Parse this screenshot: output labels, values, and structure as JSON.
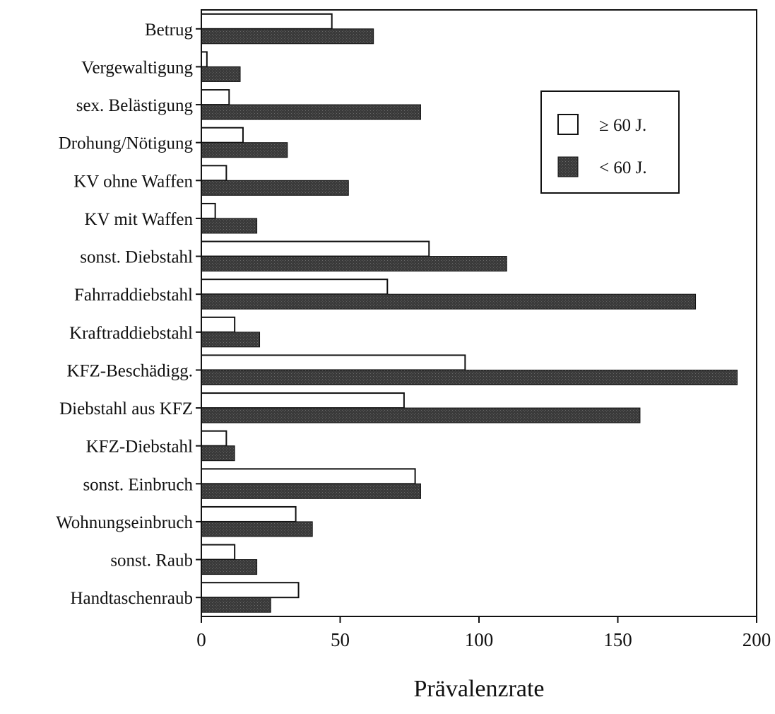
{
  "chart_data": {
    "type": "bar",
    "orientation": "horizontal",
    "categories": [
      "Betrug",
      "Vergewaltigung",
      "sex. Belästigung",
      "Drohung/Nötigung",
      "KV ohne Waffen",
      "KV mit Waffen",
      "sonst. Diebstahl",
      "Fahrraddiebstahl",
      "Kraftraddiebstahl",
      "KFZ-Beschädigg.",
      "Diebstahl aus KFZ",
      "KFZ-Diebstahl",
      "sonst. Einbruch",
      "Wohnungseinbruch",
      "sonst. Raub",
      "Handtaschenraub"
    ],
    "series": [
      {
        "name": "≥ 60 J.",
        "color": "#ffffff",
        "values": [
          47,
          2,
          10,
          15,
          9,
          5,
          82,
          67,
          12,
          95,
          73,
          9,
          77,
          34,
          12,
          35
        ]
      },
      {
        "name": "< 60 J.",
        "color": "#383838",
        "values": [
          62,
          14,
          79,
          31,
          53,
          20,
          110,
          178,
          21,
          193,
          158,
          12,
          79,
          40,
          20,
          25
        ]
      }
    ],
    "xlabel": "Prävalenzrate",
    "ylabel": "",
    "title": "",
    "xlim": [
      0,
      200
    ],
    "xticks": [
      0,
      50,
      100,
      150,
      200
    ],
    "grid": false,
    "legend_position": "top-right"
  }
}
